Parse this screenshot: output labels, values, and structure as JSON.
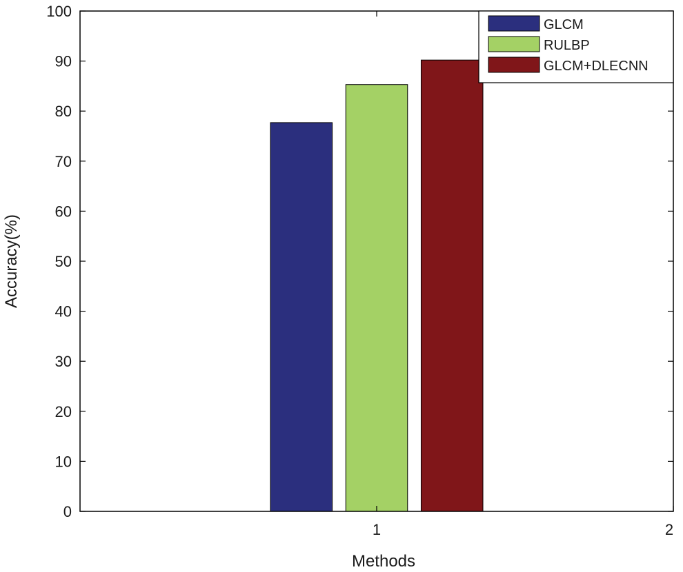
{
  "chart_data": {
    "type": "bar",
    "title": "",
    "xlabel": "Methods",
    "ylabel": "Accuracy(%)",
    "x": [
      1
    ],
    "xlim": [
      0,
      2
    ],
    "xticks": [
      1,
      2
    ],
    "ylim": [
      0,
      100
    ],
    "yticks": [
      0,
      10,
      20,
      30,
      40,
      50,
      60,
      70,
      80,
      90,
      100
    ],
    "grid": false,
    "legend_position": "top-right",
    "series": [
      {
        "name": "GLCM",
        "values": [
          77.7
        ],
        "color": "#2b2f7e"
      },
      {
        "name": "RULBP",
        "values": [
          85.3
        ],
        "color": "#a4d165"
      },
      {
        "name": "GLCM+DLECNN",
        "values": [
          90.2
        ],
        "color": "#801619"
      }
    ]
  }
}
